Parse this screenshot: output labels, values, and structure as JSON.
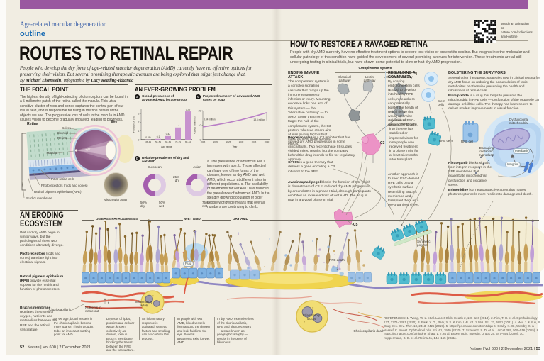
{
  "palette": {
    "top_bar": "#9a58a0",
    "kicker_blue": "#3a5fa8",
    "outline_blue": "#1569b3",
    "cream_bg": "#f1ede2",
    "bar_purple": "#c792ce",
    "donut_dark": "#a55fae",
    "donut_light": "#decae3",
    "line_purple": "#b87ec6",
    "drusen_yellow": "#f0d44e",
    "vessel_red": "#dd5b45",
    "rpe_blue": "#7fb2e2",
    "therapy_teal": "#52bccf",
    "c3_pink": "#ec93c6"
  },
  "masthead": {
    "kicker": "Age-related macular degeneration",
    "series": "outline",
    "watch": "Watch an animation at nature.com/collections/ amd-outline"
  },
  "header": {
    "title": "ROUTES TO RETINAL REPAIR",
    "standfirst": "People who develop the dry form of age-related macular degeneration (AMD) currently have no effective options for preserving their vision. But several promising therapeutic avenues are being explored that might just change that.",
    "byline_pre": "By ",
    "author": "Michael Eisenstein",
    "byline_mid": "; infographic by ",
    "illustrator": "Lucy Reading-Ikkanda"
  },
  "focal_point": {
    "title": "THE FOCAL POINT",
    "body": "The highest density of light-detecting photoreceptors can be found in a 5-millimetre patch of the retina called the macula. This ultra-sensitive cluster of rods and cones captures the central part of our visual field, and is responsible for filling in the fine details of the objects we see. The progressive loss of cells in the macula in AMD causes vision to become gradually impaired, leading to blindness.",
    "labels": {
      "retina_bracket": "Retina",
      "eye": "Eye",
      "sclera": "Sclera",
      "choroid": "Choroid",
      "retina_layer": "Retina",
      "macula": "Macula",
      "light": "Light",
      "inner_retina": "Inner retina cells",
      "photoreceptors": "Photoreceptors (rods and cones)",
      "rpe": "Retinal pigment epithelium (RPE)",
      "bruchs": "Bruch's membrane",
      "vision_amd": "Vision with AMD"
    }
  },
  "growing_problem": {
    "title": "AN EVER-GROWING PROBLEM",
    "note": "a. The prevalence of advanced AMD increases with age. b. Those affected can have one of two forms of the disease, known as dry AMD and wet AMD, which occur at different rates in different populations. c. The availability of treatments for wet AMD has reduced the prevalence of advanced AMD, but a steadily growing population of older people worldwide means that overall numbers are continuing to climb."
  },
  "chart_data": [
    {
      "id": "prevalence_by_age",
      "type": "bar",
      "panel": "a",
      "title": "Global prevalence of advanced AMD by age group",
      "categories": [
        "45–49",
        "50–59",
        "60–69",
        "70–79",
        "80–84"
      ],
      "values": [
        0.02,
        0.1,
        0.42,
        1.4,
        3.25
      ],
      "value_labels": [
        "0.0%",
        "0.1",
        "0.42",
        "1.4",
        "3.25"
      ],
      "xlabel": "Age range",
      "ylabel": "Prevalence (%)",
      "ylim": [
        0,
        3.5
      ],
      "yticks": [
        0,
        1,
        2,
        3
      ],
      "bar_color": "#c792ce"
    },
    {
      "id": "dry_wet_prevalence",
      "type": "pie",
      "panel": "b",
      "title": "Relative prevalence of dry and wet AMD",
      "groups": [
        {
          "name": "European",
          "slices": [
            {
              "label": "50% dry",
              "value": 50
            },
            {
              "label": "50% wet",
              "value": 50
            }
          ]
        },
        {
          "name": "Asian",
          "slices": [
            {
              "label": "25% dry",
              "value": 25
            },
            {
              "label": "75% wet",
              "value": 75
            }
          ]
        }
      ],
      "colors": {
        "dry": "#a55fae",
        "wet": "#decae3"
      }
    },
    {
      "id": "projected_cases",
      "type": "line",
      "panel": "c",
      "title": "Projected number* of advanced AMD cases by 2040",
      "x": [
        2015,
        2020,
        2025,
        2030,
        2035,
        2040
      ],
      "values": [
        8.84,
        10.2,
        11.8,
        13.7,
        16.0,
        18.6
      ],
      "annotations": [
        "8.84 million",
        "18.6 million"
      ],
      "xlabel": "Year",
      "ylabel": "Cases (millions)",
      "ylim": [
        0,
        20
      ],
      "yticks": [
        0,
        10,
        20
      ],
      "line_color": "#b87ec6"
    }
  ],
  "restore": {
    "title": "HOW TO RESTORE A RAVAGED RETINA",
    "intro": "People with dry AMD currently have no effective treatment options to restore lost vision or prevent its decline. But insights into the molecular and cellular pathology of this condition have guided the development of several promising avenues for intervention. These treatments are all still undergoing testing in clinical trials, but have shown some potential to slow or halt dry AMD progression."
  },
  "immune": {
    "title": "ENDING IMMUNE ATTACK",
    "body": "The complement system is a complex signalling cascade that ramps up the immune response to infection or injury. Mounting evidence links one arm of this system — the ‘alternative pathway’ — to AMD. Some treatments target the hub of the complement system, the C3 protein, whereas others aim at less pivotal factors that could achieve more specific effects.",
    "complement_system": "Complement system",
    "classical": "Classical pathway",
    "lectin": "Lectin pathway",
    "alternative": "Alternative pathway",
    "c3": "C3",
    "c5": "C5"
  },
  "rebuilding": {
    "title": "REBUILDING A COMMUNITY",
    "body": "By coaxing embryonic stem cells (ESCs) to develop into healthy RPE cells, researchers can potentially bolster the health of retinal tissue that would otherwise succumb to geographic atrophy.",
    "injection": "Injection of ESC-derived RPE cells into the eye has stabilized or improved vision for nine people who received treatment in a phase I trial for at least six months after transplant.",
    "sheet": "Another approach is to seed ESC-derived RPE cells onto a synthetic surface resembling Bruch's membrane and transplant them as a pre-organized sheet.",
    "stem_cells": "Stem cells",
    "rpe_cells": "RPE cells",
    "synthetic_polymer": "Synthetic polymer"
  },
  "bolstering": {
    "title": "BOLSTERING THE SURVIVORS",
    "body": "Several other therapeutic strategies now in clinical testing for dry AMD focus on reducing the accumulation of toxic metabolites or otherwise preserving the health and robustness of retinal cells.",
    "rpe_cell": "RPE cell",
    "dysfunctional": "Dysfunctional mitochondria",
    "damaging": "Damaging metabolic byproducts",
    "feedback": "Feedback",
    "integrins": "Integrins"
  },
  "drugs": {
    "pegcetacoplan": {
      "name": "Pegcetacoplan",
      "text": " is a C3 inhibitor that has slowed dry AMD progression in some clinical trials. Two recent phase III studies yielded mixed results, but the company behind the drug intends to file for regulatory approval."
    },
    "gt005": {
      "name": "GT005",
      "text": " is a gene therapy that delivers a gene encoding a C3 inhibitor to the RPE."
    },
    "avacincaptad": {
      "name": "Avacincaptad pegol",
      "text": " blocks the function of C5, which is downstream of C3. It reduced dry AMD progression by around 28% in a phase I trial, although participants exhibited an increased risk of wet AMD. The drug is now in a pivotal phase III trial."
    },
    "elamipretide": {
      "name": "Elamipretide",
      "text": " is a drug that helps to preserve the mitochondria in RPE cells — dysfunction of the organelle can damage or kill the cells. The therapy has been shown to deliver modest improvements in visual function."
    },
    "risuteganib": {
      "name": "Risuteganib",
      "text": " blocks signals from integrin receptors in the RPE membrane that exacerbate mitochondrial dysfunction and oxidative stress."
    },
    "brimonidine": {
      "name": "Brimonidine",
      "text": " is a neuroprotective agent that makes photoreceptor cells more resilient to damage and death."
    }
  },
  "eroding": {
    "title_line1": "AN ERODING",
    "title_line2": "ECOSYSTEM",
    "body": "Wet and dry AMD begin in similar ways, but the pathologies of these two conditions ultimately diverge.",
    "side": [
      {
        "lead": "Photoreceptors",
        "text": " (rods and cones) translate light into electrical signals."
      },
      {
        "lead": "Retinal pigment epithelium (RPE)",
        "text": " provide essential support for the health and function of photoreceptors."
      },
      {
        "lead": "Bruch's membrane",
        "text": " regulates the transit of oxygen, nutrients and metabolites between the RPE and the retinal vasculature."
      }
    ],
    "band": {
      "disease": "DISEASE PATHOGENESIS",
      "wet": "WET AMD",
      "dry": "DRY AMD",
      "fluid": "Fluid",
      "rpe_death": "RPE death",
      "inflammatory1": "Inflammatory factors",
      "inflammatory2": "Inflammatory factors",
      "choriocapillaris": "Choriocapillaris",
      "nutrients": "Nutrients in, waste out",
      "chorio_death": "Choriocapillaris death"
    },
    "captions": [
      "As we age, blood vessels in the choriocapillaris become more sparse. This is thought to be an important starting point for AMD.",
      "Deposits of lipids, proteins and cellular waste, known collectively as drusen, form in Bruch's membrane, blocking the transit between the RPE and the vasculature.",
      "An inflammatory response is activated. Genetic factors and smoking can exacerbate this process.",
      "In people with wet AMD, blood vessels form around the drusen and leak fluid into the eye. Several treatments exist for wet AMD.",
      "In dry AMD, extensive loss of the choriocapillaris, RPE and photoreceptors — a state known as geographic atrophy — results in the onset of blindness."
    ]
  },
  "references": "REFERENCES: 1. Wong, W. L. et al. Lancet Glob. Health 2, 106–116 (2014). 2. Rim, T. H. et al. Ophthalmology 127, 1371–1381 (2020). 3. Park, Y. G., Park, Y. S. & Kim, I.-B. Int. J. Mol. Sci. 22, 6851 (2021). 4. Wu, J. & Sun, X. Drug Des. Dev. Ther. 13, 2413–2425 (2019). 5. https://go.nature.com/3mh6dqw 6. Csaky, K. G., Westby, K. & Nassef, K. Invest. Ophthalmol. Vis. Sci. 61, 1940 (2020). 7. Schwartz, S. D. et al. Lancet 385, 509–516 (2015). 8. https://go.nature.com/3fnj5bj 9. Shaw, L. T. et al. Expert Opin. Investig. Drugs 29, 547–554 (2020). 10. Kuppermann, B. D. et al. Retina 41, 144–155 (2021).",
  "footer": {
    "left_page": "52",
    "left_rest": " | Nature | Vol 600 | 2 December 2021",
    "right_rest": "Nature | Vol 600 | 2 December 2021 | ",
    "right_page": "53"
  }
}
